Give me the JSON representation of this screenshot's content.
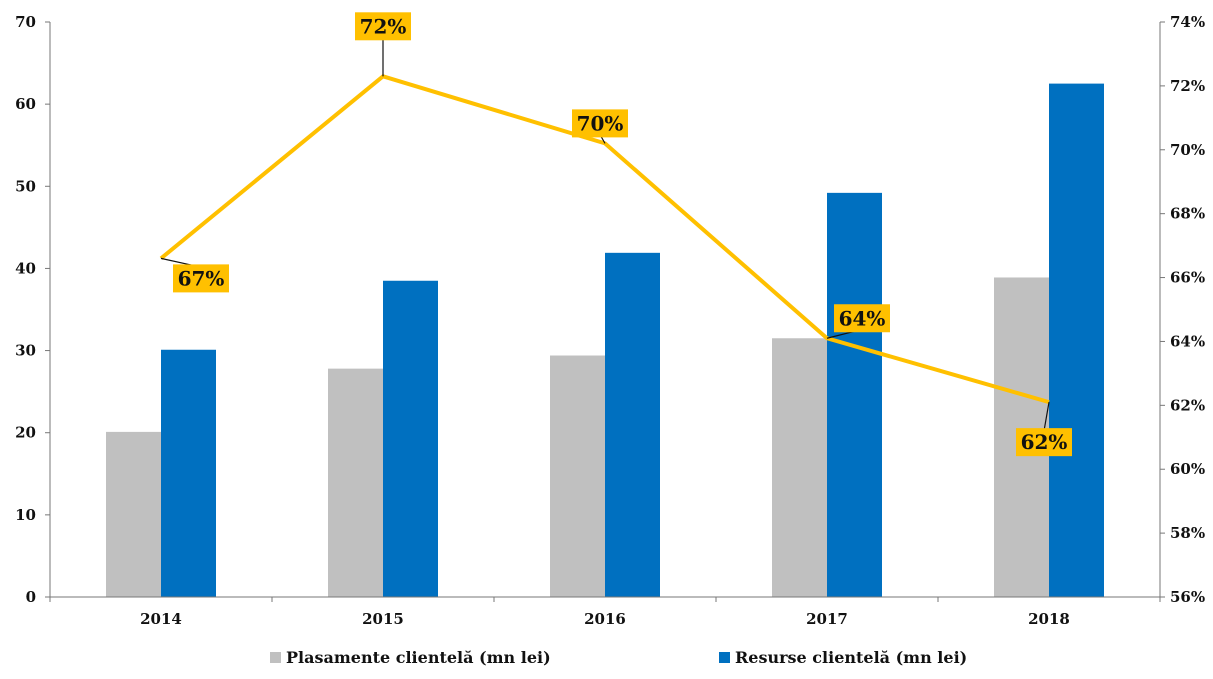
{
  "chart_data": {
    "type": "bar",
    "categories": [
      "2014",
      "2015",
      "2016",
      "2017",
      "2018"
    ],
    "series": [
      {
        "name": "Plasamente clientelă (mn lei)",
        "type": "bar",
        "axis": "left",
        "color": "#c0c0c0",
        "values": [
          20.1,
          27.8,
          29.4,
          31.5,
          38.9
        ]
      },
      {
        "name": "Resurse clientelă (mn lei)",
        "type": "bar",
        "axis": "left",
        "color": "#0070c0",
        "values": [
          30.1,
          38.5,
          41.9,
          49.2,
          62.5
        ]
      },
      {
        "type": "line",
        "axis": "right",
        "color": "#ffc000",
        "values": [
          66.6,
          72.3,
          70.2,
          64.1,
          62.1
        ],
        "labels": [
          "67%",
          "72%",
          "70%",
          "64%",
          "62%"
        ]
      }
    ],
    "left_axis": {
      "ylim": [
        0,
        70
      ],
      "ticks": [
        "0",
        "10",
        "20",
        "30",
        "40",
        "50",
        "60",
        "70"
      ]
    },
    "right_axis": {
      "ylim": [
        56,
        74
      ],
      "ticks": [
        "56%",
        "58%",
        "60%",
        "62%",
        "64%",
        "66%",
        "68%",
        "70%",
        "72%",
        "74%"
      ]
    },
    "grid": false,
    "legend_position": "bottom"
  }
}
